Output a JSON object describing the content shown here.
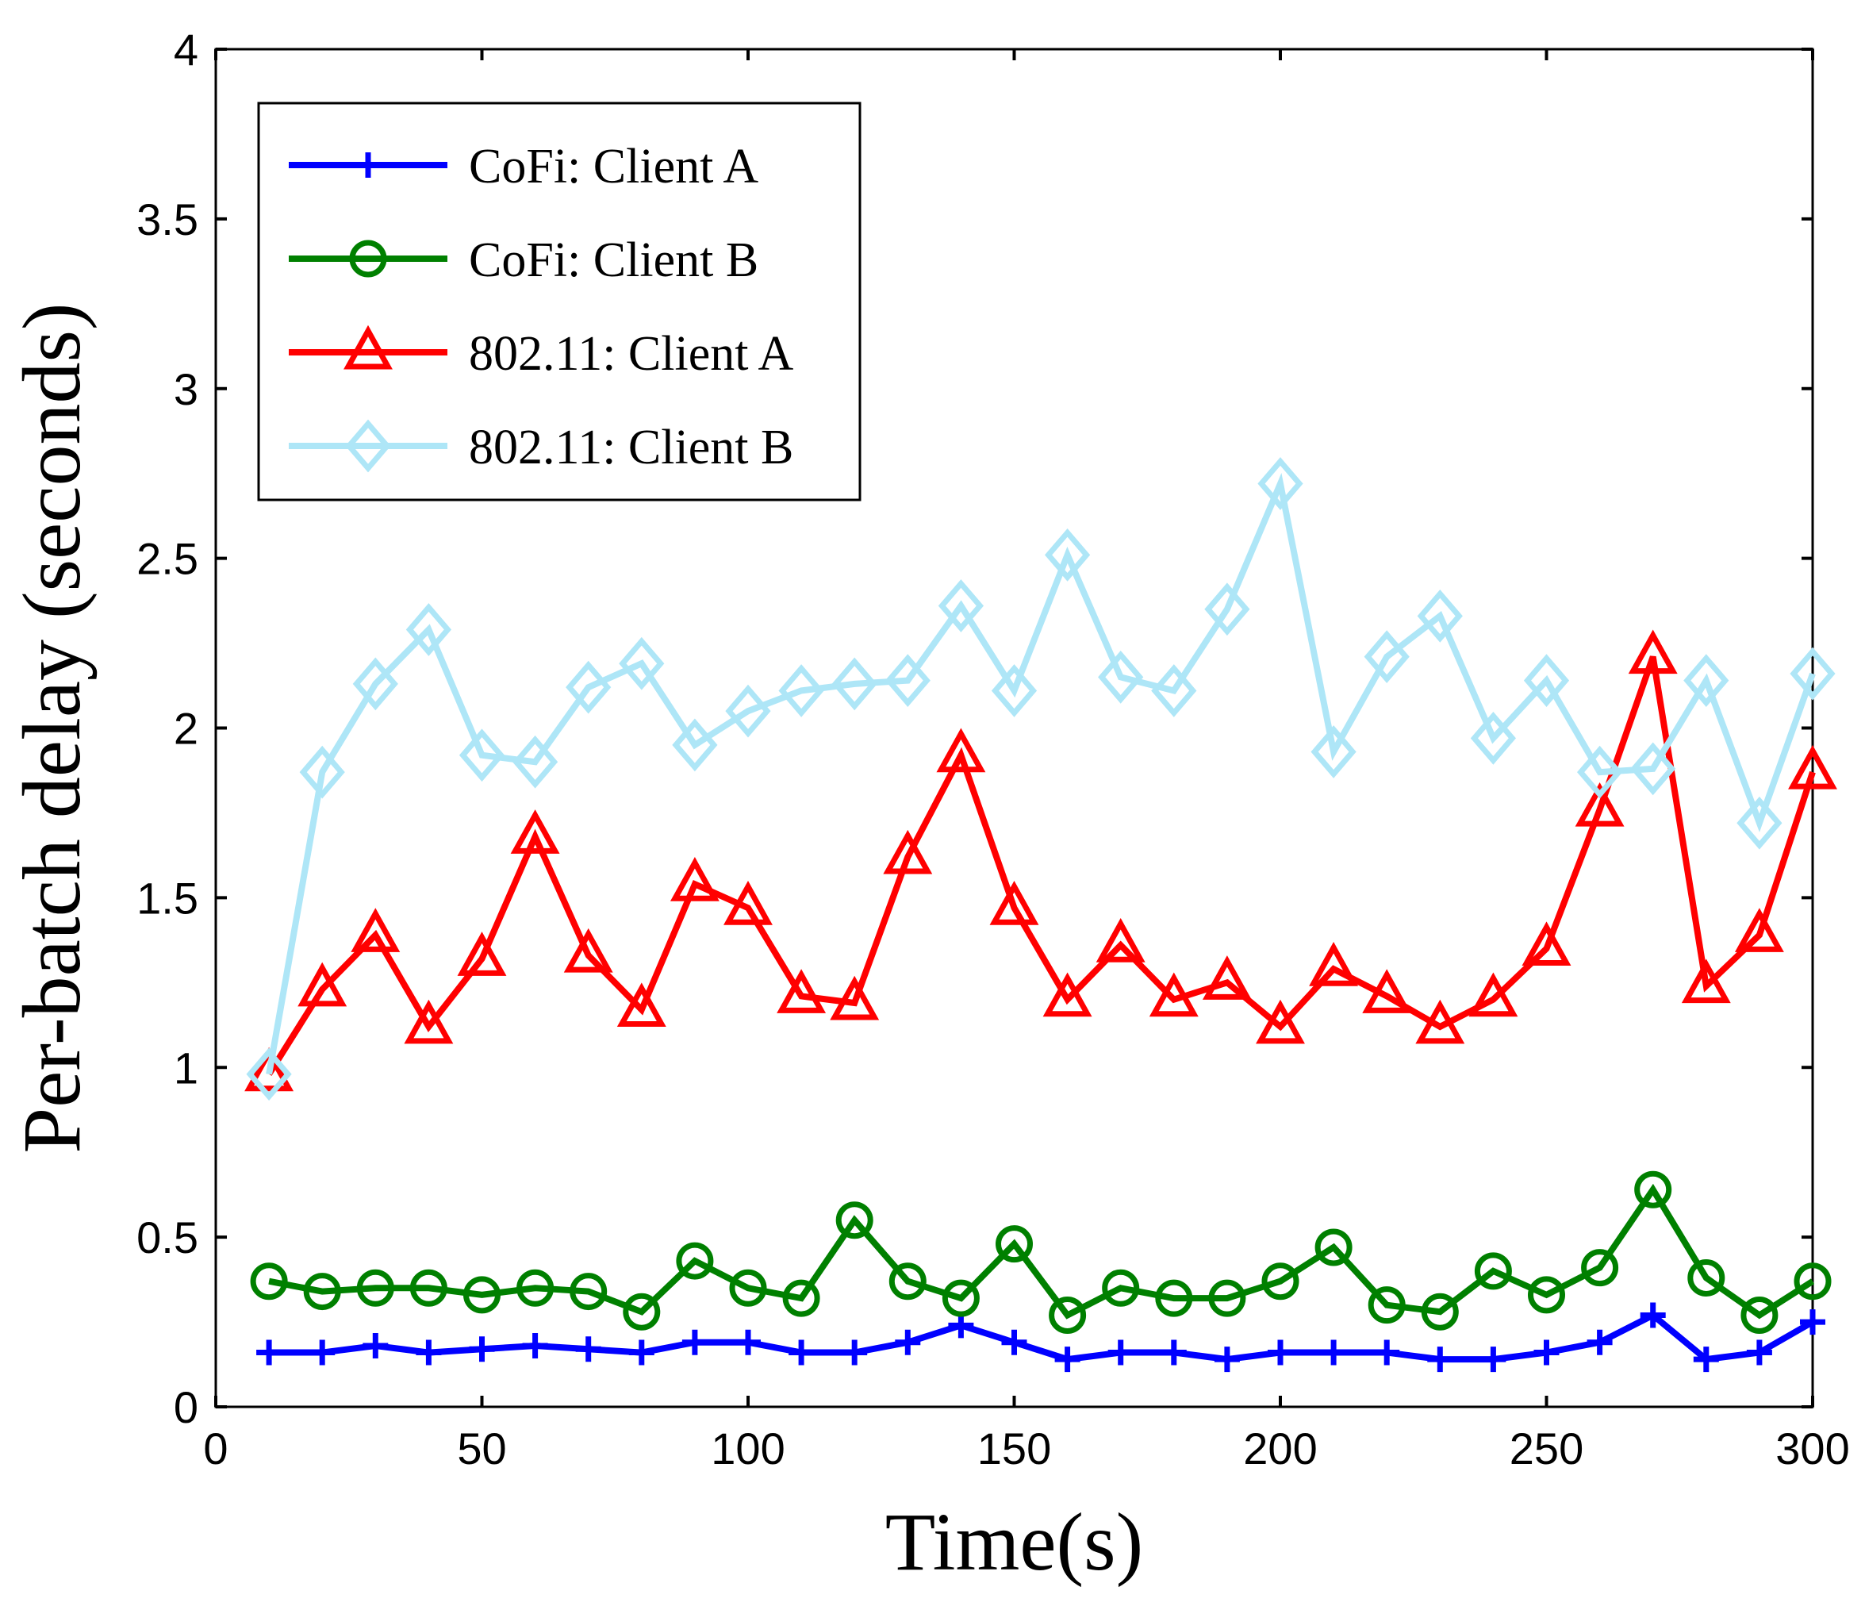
{
  "chart_data": {
    "type": "line",
    "title": "",
    "xlabel": "Time(s)",
    "ylabel": "Per-batch delay (seconds)",
    "xlim": [
      0,
      300
    ],
    "ylim": [
      0,
      4
    ],
    "xticks": [
      0,
      50,
      100,
      150,
      200,
      250,
      300
    ],
    "xtick_labels": [
      "0",
      "50",
      "100",
      "150",
      "200",
      "250",
      "300"
    ],
    "yticks": [
      0,
      0.5,
      1,
      1.5,
      2,
      2.5,
      3,
      3.5,
      4
    ],
    "ytick_labels": [
      "0",
      "0.5",
      "1",
      "1.5",
      "2",
      "2.5",
      "3",
      "3.5",
      "4"
    ],
    "grid": false,
    "legend_position": "top-left",
    "x": [
      10,
      20,
      30,
      40,
      50,
      60,
      70,
      80,
      90,
      100,
      110,
      120,
      130,
      140,
      150,
      160,
      170,
      180,
      190,
      200,
      210,
      220,
      230,
      240,
      250,
      260,
      270,
      280,
      290,
      300
    ],
    "series": [
      {
        "name": "CoFi: Client A",
        "color": "#0000ff",
        "marker": "plus",
        "values": [
          0.16,
          0.16,
          0.18,
          0.16,
          0.17,
          0.18,
          0.17,
          0.16,
          0.19,
          0.19,
          0.16,
          0.16,
          0.19,
          0.24,
          0.19,
          0.14,
          0.16,
          0.16,
          0.14,
          0.16,
          0.16,
          0.16,
          0.14,
          0.14,
          0.16,
          0.19,
          0.27,
          0.14,
          0.16,
          0.25
        ]
      },
      {
        "name": "CoFi: Client B",
        "color": "#008000",
        "marker": "circle",
        "values": [
          0.37,
          0.34,
          0.35,
          0.35,
          0.33,
          0.35,
          0.34,
          0.28,
          0.43,
          0.35,
          0.32,
          0.55,
          0.37,
          0.32,
          0.48,
          0.27,
          0.35,
          0.32,
          0.32,
          0.37,
          0.47,
          0.3,
          0.28,
          0.4,
          0.33,
          0.41,
          0.64,
          0.38,
          0.27,
          0.37
        ]
      },
      {
        "name": "802.11: Client A",
        "color": "#ff0000",
        "marker": "triangle",
        "values": [
          0.98,
          1.23,
          1.39,
          1.12,
          1.32,
          1.68,
          1.33,
          1.17,
          1.54,
          1.47,
          1.21,
          1.19,
          1.62,
          1.92,
          1.47,
          1.2,
          1.36,
          1.2,
          1.25,
          1.12,
          1.29,
          1.21,
          1.12,
          1.2,
          1.35,
          1.76,
          2.21,
          1.24,
          1.39,
          1.87
        ]
      },
      {
        "name": "802.11: Client B",
        "color": "#aee6f7",
        "marker": "diamond",
        "values": [
          0.98,
          1.87,
          2.13,
          2.29,
          1.92,
          1.9,
          2.12,
          2.19,
          1.95,
          2.05,
          2.11,
          2.13,
          2.14,
          2.36,
          2.11,
          2.51,
          2.15,
          2.11,
          2.35,
          2.72,
          1.93,
          2.21,
          2.33,
          1.97,
          2.14,
          1.87,
          1.88,
          2.14,
          1.72,
          2.16
        ]
      }
    ]
  }
}
